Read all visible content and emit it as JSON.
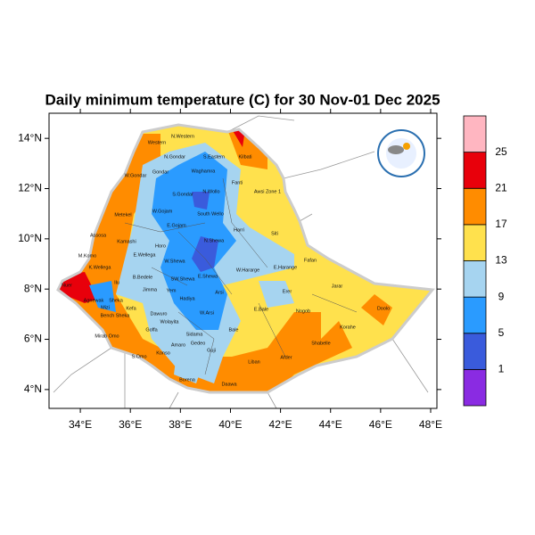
{
  "title": "Daily minimum temperature (C) for 30 Nov-01 Dec 2025",
  "axes": {
    "xlim": [
      32.75,
      48.25
    ],
    "ylim": [
      3.25,
      15.0
    ],
    "xticks": [
      {
        "value": 34,
        "label": "34°E"
      },
      {
        "value": 36,
        "label": "36°E"
      },
      {
        "value": 38,
        "label": "38°E"
      },
      {
        "value": 40,
        "label": "40°E"
      },
      {
        "value": 42,
        "label": "42°E"
      },
      {
        "value": 44,
        "label": "44°E"
      },
      {
        "value": 46,
        "label": "46°E"
      },
      {
        "value": 48,
        "label": "48°E"
      }
    ],
    "yticks": [
      {
        "value": 4,
        "label": "4°N"
      },
      {
        "value": 6,
        "label": "6°N"
      },
      {
        "value": 8,
        "label": "8°N"
      },
      {
        "value": 10,
        "label": "10°N"
      },
      {
        "value": 12,
        "label": "12°N"
      },
      {
        "value": 14,
        "label": "14°N"
      }
    ]
  },
  "colorbar": {
    "levels": [
      1,
      5,
      9,
      13,
      17,
      21,
      25
    ],
    "colors": [
      "#8a2be2",
      "#3a5bdc",
      "#2a9bff",
      "#a6d4f0",
      "#ffe14d",
      "#ff8c00",
      "#e8000b",
      "#ffb6c1"
    ]
  },
  "regions": [
    "N.Western",
    "Western",
    "N.Gondar",
    "S.Eastern",
    "Kilbati",
    "Gondar",
    "Waghamra",
    "Fanti",
    "W.Gondar",
    "S.Gondar",
    "N.Wollo",
    "Awsi Zone 1",
    "Metekel",
    "W.Gojam",
    "South Wello",
    "Harri",
    "Siti",
    "E.Gojam",
    "Assosa",
    "Kamashi",
    "Horo",
    "N.Shewa",
    "M.Komo",
    "E.Wellega",
    "W.Shewa",
    "Fafan",
    "K.Wellega",
    "W.Hararge",
    "E.Harange",
    "B.Bedele",
    "SW.Shewa",
    "E.Shewa",
    "Nuer",
    "Ilu",
    "Jimma",
    "Yem",
    "Arsi",
    "Erer",
    "Jarar",
    "Agnewak",
    "Sheka",
    "Mizi",
    "Kefa",
    "Hadiya",
    "Bench Sheka",
    "Dawuro",
    "Wolayita",
    "W.Arsi",
    "E.Bale",
    "Nogob",
    "Doolo",
    "Sidama",
    "Mirab Omo",
    "Goffa",
    "Gedeo",
    "Bale",
    "Korahe",
    "Amaro",
    "Shabelle",
    "Guji",
    "S.Omo",
    "Konso",
    "Liban",
    "Afder",
    "Borena",
    "Daawa"
  ]
}
